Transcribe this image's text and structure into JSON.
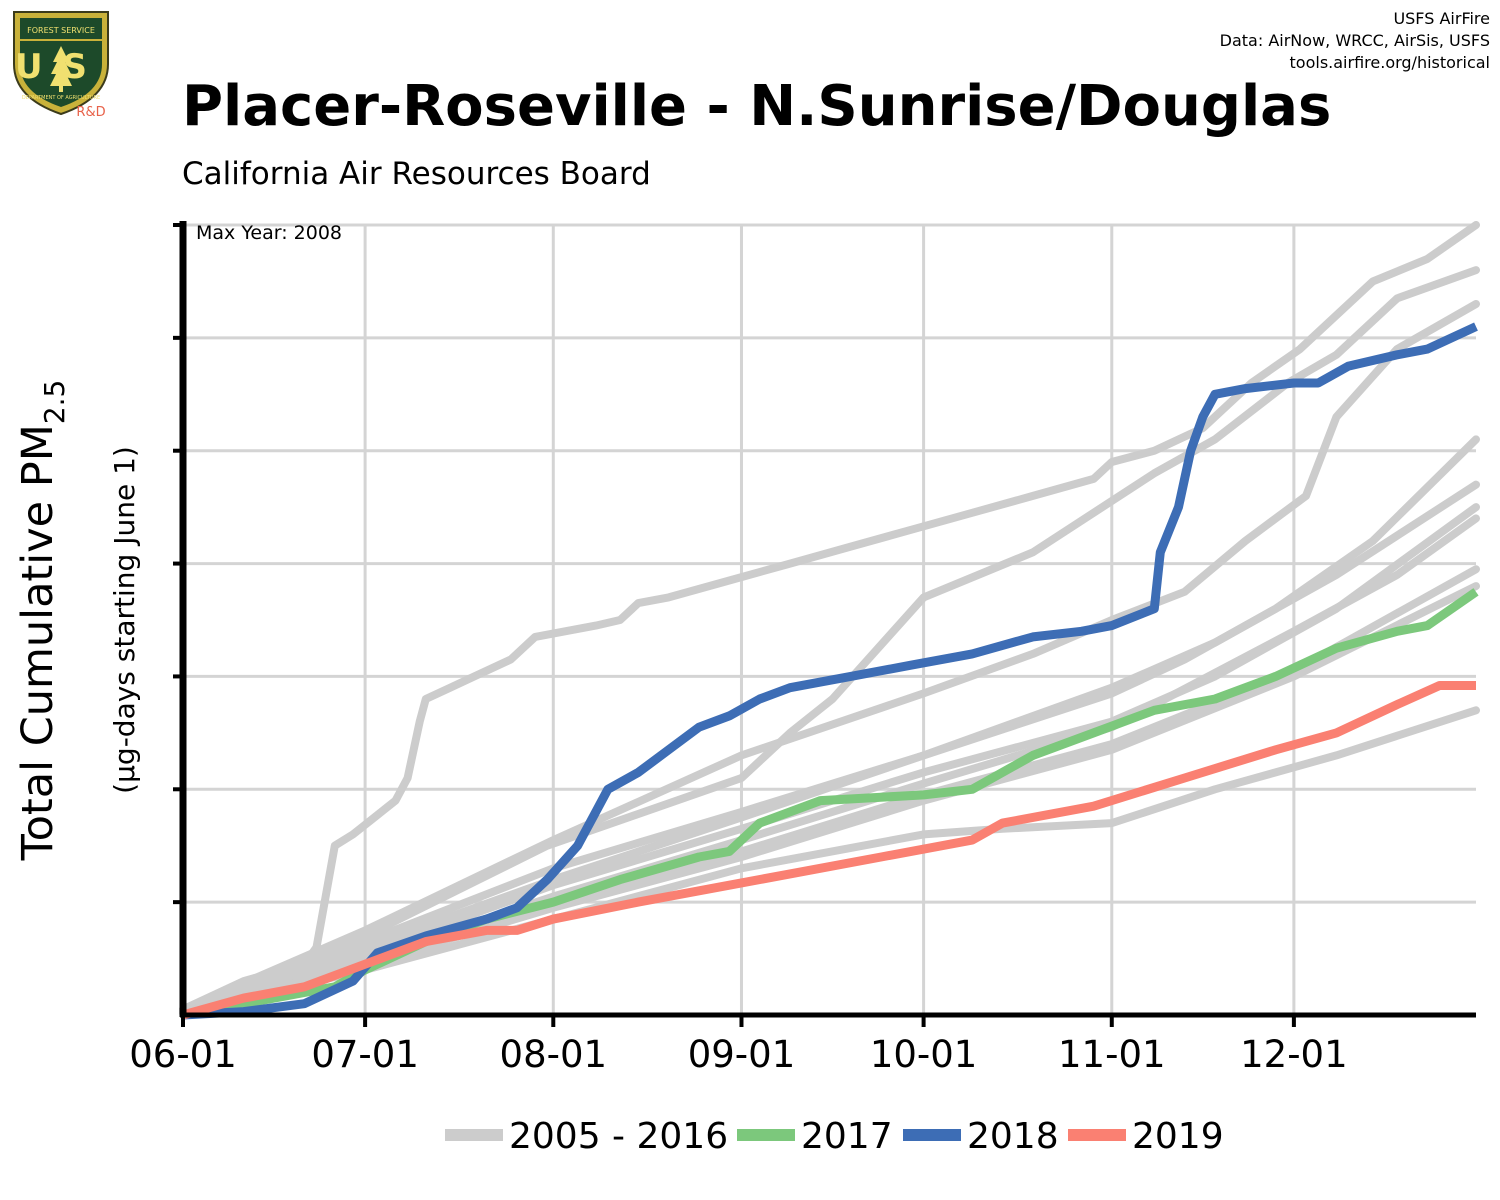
{
  "logo": {
    "top_text": "FOREST SERVICE",
    "letters": "US",
    "bottom_text": "DEPARTMENT OF AGRICULTURE",
    "badge": "R&D"
  },
  "credits": {
    "line1": "USFS AirFire",
    "line2": "Data: AirNow, WRCC, AirSis, USFS",
    "line3": "tools.airfire.org/historical"
  },
  "header": {
    "title": "Placer-Roseville - N.Sunrise/Douglas",
    "subtitle": "California Air Resources Board"
  },
  "colors": {
    "historical": "#cccccc",
    "y2017": "#7cc87c",
    "y2018": "#3d6db5",
    "y2019": "#fa8072",
    "grid": "#d4d4d4",
    "axis": "#000000"
  },
  "chart_data": {
    "type": "line",
    "annotation": "Max Year: 2008",
    "ylabel_main": "Total Cumulative PM",
    "ylabel_sub": "2.5",
    "ylabel_units": "(µg-days starting June 1)",
    "x_ticks": [
      "06-01",
      "07-01",
      "08-01",
      "09-01",
      "10-01",
      "11-01",
      "12-01"
    ],
    "x_tick_days": [
      0,
      30,
      61,
      92,
      122,
      153,
      183
    ],
    "xlim_days": [
      0,
      213
    ],
    "ylim": [
      0,
      7
    ],
    "y_gridlines": [
      1,
      2,
      3,
      4,
      5,
      6,
      7
    ],
    "legend": [
      {
        "label": "2005 - 2016",
        "color": "#cccccc"
      },
      {
        "label": "2017",
        "color": "#7cc87c"
      },
      {
        "label": "2018",
        "color": "#3d6db5"
      },
      {
        "label": "2019",
        "color": "#fa8072"
      }
    ],
    "historical_series": [
      {
        "points": [
          [
            0,
            0.05
          ],
          [
            10,
            0.3
          ],
          [
            20,
            0.45
          ],
          [
            22,
            0.6
          ],
          [
            25,
            1.5
          ],
          [
            28,
            1.6
          ],
          [
            35,
            1.9
          ],
          [
            37,
            2.1
          ],
          [
            39,
            2.6
          ],
          [
            40,
            2.8
          ],
          [
            44,
            2.9
          ],
          [
            48,
            3.0
          ],
          [
            54,
            3.15
          ],
          [
            58,
            3.35
          ],
          [
            68,
            3.45
          ],
          [
            72,
            3.5
          ],
          [
            75,
            3.65
          ],
          [
            80,
            3.7
          ],
          [
            90,
            3.85
          ],
          [
            100,
            4.0
          ],
          [
            110,
            4.15
          ],
          [
            120,
            4.3
          ],
          [
            130,
            4.45
          ],
          [
            140,
            4.6
          ],
          [
            150,
            4.75
          ],
          [
            153,
            4.9
          ],
          [
            160,
            5.0
          ],
          [
            168,
            5.2
          ],
          [
            176,
            5.6
          ],
          [
            184,
            5.9
          ],
          [
            196,
            6.5
          ],
          [
            205,
            6.7
          ],
          [
            213,
            7.0
          ]
        ]
      },
      {
        "points": [
          [
            0,
            0.05
          ],
          [
            30,
            0.7
          ],
          [
            60,
            1.5
          ],
          [
            92,
            2.1
          ],
          [
            100,
            2.5
          ],
          [
            107,
            2.8
          ],
          [
            122,
            3.7
          ],
          [
            140,
            4.1
          ],
          [
            160,
            4.8
          ],
          [
            170,
            5.1
          ],
          [
            182,
            5.6
          ],
          [
            190,
            5.85
          ],
          [
            200,
            6.35
          ],
          [
            213,
            6.6
          ]
        ]
      },
      {
        "points": [
          [
            0,
            0.05
          ],
          [
            30,
            0.75
          ],
          [
            61,
            1.55
          ],
          [
            92,
            2.3
          ],
          [
            122,
            2.85
          ],
          [
            140,
            3.2
          ],
          [
            153,
            3.5
          ],
          [
            165,
            3.75
          ],
          [
            175,
            4.2
          ],
          [
            185,
            4.6
          ],
          [
            190,
            5.3
          ],
          [
            200,
            5.9
          ],
          [
            213,
            6.3
          ]
        ]
      },
      {
        "points": [
          [
            0,
            0.03
          ],
          [
            30,
            0.65
          ],
          [
            61,
            1.3
          ],
          [
            92,
            1.8
          ],
          [
            122,
            2.3
          ],
          [
            153,
            2.85
          ],
          [
            165,
            3.15
          ],
          [
            180,
            3.6
          ],
          [
            196,
            4.2
          ],
          [
            213,
            5.1
          ]
        ]
      },
      {
        "points": [
          [
            0,
            0.03
          ],
          [
            30,
            0.6
          ],
          [
            61,
            1.2
          ],
          [
            92,
            1.75
          ],
          [
            122,
            2.3
          ],
          [
            153,
            2.9
          ],
          [
            170,
            3.3
          ],
          [
            190,
            3.9
          ],
          [
            213,
            4.7
          ]
        ]
      },
      {
        "points": [
          [
            0,
            0.02
          ],
          [
            30,
            0.55
          ],
          [
            61,
            1.15
          ],
          [
            92,
            1.65
          ],
          [
            122,
            2.15
          ],
          [
            153,
            2.6
          ],
          [
            170,
            3.0
          ],
          [
            190,
            3.6
          ],
          [
            213,
            4.5
          ]
        ]
      },
      {
        "points": [
          [
            0,
            0.02
          ],
          [
            30,
            0.5
          ],
          [
            61,
            1.05
          ],
          [
            92,
            1.55
          ],
          [
            122,
            2.05
          ],
          [
            153,
            2.55
          ],
          [
            183,
            3.4
          ],
          [
            200,
            3.9
          ],
          [
            213,
            4.4
          ]
        ]
      },
      {
        "points": [
          [
            0,
            0.02
          ],
          [
            30,
            0.45
          ],
          [
            61,
            1.0
          ],
          [
            92,
            1.45
          ],
          [
            122,
            1.95
          ],
          [
            153,
            2.4
          ],
          [
            183,
            3.05
          ],
          [
            213,
            3.95
          ]
        ]
      },
      {
        "points": [
          [
            0,
            0.02
          ],
          [
            30,
            0.45
          ],
          [
            61,
            0.95
          ],
          [
            92,
            1.4
          ],
          [
            122,
            1.9
          ],
          [
            153,
            2.35
          ],
          [
            183,
            3.0
          ],
          [
            213,
            3.8
          ]
        ]
      },
      {
        "points": [
          [
            0,
            0.02
          ],
          [
            30,
            0.4
          ],
          [
            61,
            0.85
          ],
          [
            92,
            1.3
          ],
          [
            122,
            1.6
          ],
          [
            135,
            1.65
          ],
          [
            153,
            1.7
          ],
          [
            170,
            2.0
          ],
          [
            190,
            2.3
          ],
          [
            213,
            2.7
          ]
        ]
      }
    ],
    "series": [
      {
        "name": "2017",
        "color": "#7cc87c",
        "points": [
          [
            0,
            0
          ],
          [
            15,
            0.15
          ],
          [
            25,
            0.25
          ],
          [
            30,
            0.4
          ],
          [
            40,
            0.65
          ],
          [
            50,
            0.85
          ],
          [
            61,
            1.0
          ],
          [
            72,
            1.2
          ],
          [
            85,
            1.4
          ],
          [
            90,
            1.45
          ],
          [
            95,
            1.7
          ],
          [
            105,
            1.9
          ],
          [
            122,
            1.95
          ],
          [
            130,
            2.0
          ],
          [
            140,
            2.3
          ],
          [
            150,
            2.5
          ],
          [
            160,
            2.7
          ],
          [
            170,
            2.8
          ],
          [
            180,
            3.0
          ],
          [
            190,
            3.25
          ],
          [
            200,
            3.4
          ],
          [
            205,
            3.45
          ],
          [
            213,
            3.75
          ]
        ]
      },
      {
        "name": "2018",
        "color": "#3d6db5",
        "points": [
          [
            0,
            0
          ],
          [
            10,
            0.03
          ],
          [
            20,
            0.1
          ],
          [
            28,
            0.3
          ],
          [
            32,
            0.55
          ],
          [
            40,
            0.7
          ],
          [
            50,
            0.85
          ],
          [
            55,
            0.95
          ],
          [
            60,
            1.2
          ],
          [
            65,
            1.5
          ],
          [
            68,
            1.8
          ],
          [
            70,
            2.0
          ],
          [
            75,
            2.15
          ],
          [
            80,
            2.35
          ],
          [
            85,
            2.55
          ],
          [
            90,
            2.65
          ],
          [
            95,
            2.8
          ],
          [
            100,
            2.9
          ],
          [
            110,
            3.0
          ],
          [
            120,
            3.1
          ],
          [
            130,
            3.2
          ],
          [
            140,
            3.35
          ],
          [
            148,
            3.4
          ],
          [
            153,
            3.45
          ],
          [
            160,
            3.6
          ],
          [
            161,
            4.1
          ],
          [
            164,
            4.5
          ],
          [
            166,
            5.0
          ],
          [
            168,
            5.3
          ],
          [
            170,
            5.5
          ],
          [
            175,
            5.55
          ],
          [
            183,
            5.6
          ],
          [
            187,
            5.6
          ],
          [
            192,
            5.75
          ],
          [
            200,
            5.85
          ],
          [
            205,
            5.9
          ],
          [
            213,
            6.1
          ]
        ]
      },
      {
        "name": "2019",
        "color": "#fa8072",
        "points": [
          [
            0,
            0
          ],
          [
            10,
            0.15
          ],
          [
            20,
            0.25
          ],
          [
            30,
            0.45
          ],
          [
            40,
            0.65
          ],
          [
            50,
            0.75
          ],
          [
            55,
            0.75
          ],
          [
            61,
            0.85
          ],
          [
            75,
            1.0
          ],
          [
            90,
            1.15
          ],
          [
            100,
            1.25
          ],
          [
            115,
            1.4
          ],
          [
            130,
            1.55
          ],
          [
            135,
            1.7
          ],
          [
            150,
            1.85
          ],
          [
            165,
            2.1
          ],
          [
            180,
            2.35
          ],
          [
            190,
            2.5
          ],
          [
            200,
            2.75
          ],
          [
            207,
            2.92
          ],
          [
            213,
            2.92
          ]
        ]
      }
    ]
  }
}
